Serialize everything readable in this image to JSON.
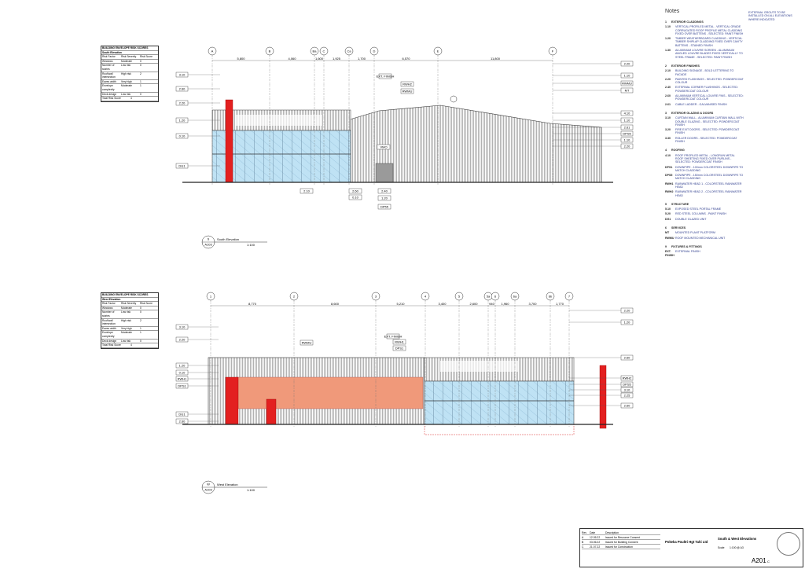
{
  "notes": {
    "heading": "Notes",
    "side_note": "EXTERNAL GROUTS TO BE INSTALLED ON ALL ELEVATIONS WHERE INDICATED",
    "sections": [
      {
        "number": "1",
        "title": "EXTERIOR CLADDINGS",
        "items": [
          {
            "code": "1.10",
            "text": "VERTICAL PROFILED METAL - VERTICAL GRADE CORRUGATED ROOF PROFILE METAL CLADDING FIXED OVER BATTENS - SELECTED: PAINT FINISH"
          },
          {
            "code": "1.20",
            "text": "TIMBER WEATHERBOARD CLADDING - VERTICAL TIMBER SHIPLAP CLADDING FIXED OVER CAVITY BATTENS - STAINED FINISH"
          },
          {
            "code": "1.30",
            "text": "ALUMINIUM LOUVRE SCREEN - ALUMINIUM ANGLED LOUVRE BLADES FIXED VERTICALLY TO STEEL FRAME - SELECTED: PAINT FINISH"
          }
        ]
      },
      {
        "number": "2",
        "title": "EXTERIOR FINISHES",
        "items": [
          {
            "code": "2.10",
            "text": "BUILDING SIGNAGE - BOLD LETTERING TO FACADE"
          },
          {
            "code": "2.20",
            "text": "PAINTED FLASHINGS - SELECTED: POWDERCOAT COLOUR"
          },
          {
            "code": "2.40",
            "text": "EXTERNAL CORNER FLASHINGS - SELECTED: POWDERCOAT COLOUR"
          },
          {
            "code": "2.60",
            "text": "ALUMINIUM VERTICAL LOUVRE FINS - SELECTED: POWDERCOAT COLOUR"
          },
          {
            "code": "2.61",
            "text": "CABLE LADDER - GALVANISED FINISH"
          }
        ]
      },
      {
        "number": "3",
        "title": "EXTERIOR GLAZING & DOORS",
        "items": [
          {
            "code": "3.10",
            "text": "CURTAIN WALL - ALUMINIUM CURTAIN WALL WITH DOUBLE GLAZING - SELECTED: POWDERCOAT FINISH"
          },
          {
            "code": "3.20",
            "text": "FIRE EXIT DOORS - SELECTED: POWDERCOAT FINISH"
          },
          {
            "code": "3.30",
            "text": "ROLLER DOORS - SELECTED: POWDERCOAT FINISH"
          }
        ]
      },
      {
        "number": "4",
        "title": "ROOFING",
        "items": [
          {
            "code": "4.10",
            "text": "ROOF PROFILED METAL - LONGRUN METAL ROOF SHEETING FIXED OVER PURLINS - SELECTED: POWDERCOAT FINISH"
          },
          {
            "code": "DPS1",
            "text": "DOWNPIPE - 100mm COLORSTEEL DOWNPIPE TO MATCH CLADDING"
          },
          {
            "code": "DPS5",
            "text": "DOWNPIPE - 150mm COLORSTEEL DOWNPIPE TO MATCH CLADDING"
          },
          {
            "code": "RWH1",
            "text": "RAINWATER HEAD 1 - COLORSTEEL RAINWATER HEAD"
          },
          {
            "code": "RWH2",
            "text": "RAINWATER HEAD 2 - COLORSTEEL RAINWATER HEAD"
          }
        ]
      },
      {
        "number": "5",
        "title": "STRUCTURE",
        "items": [
          {
            "code": "5.10",
            "text": "EXPOSED STEEL PORTAL FRAME"
          },
          {
            "code": "5.20",
            "text": "RED STEEL COLUMNS - PAINT FINISH"
          },
          {
            "code": "DG1",
            "text": "DOUBLE GLAZED UNIT"
          }
        ]
      },
      {
        "number": "6",
        "title": "SERVICES",
        "items": [
          {
            "code": "MT",
            "text": "MOUNTED PLANT PLATFORM"
          },
          {
            "code": "RWMU",
            "text": "ROOF MOUNTED MECHANICAL UNIT"
          }
        ]
      },
      {
        "number": "9",
        "title": "FIXTURES & FITTINGS",
        "items": [
          {
            "code": "EXT. FINISH",
            "text": "EXTERNAL FINISH"
          }
        ]
      }
    ]
  },
  "elevations": [
    {
      "title": "South Elevation",
      "ref": "S",
      "sheet": "A103",
      "scale": "1:100",
      "grids": [
        "A",
        "B",
        "Ba",
        "C",
        "Ca",
        "D",
        "E",
        "F"
      ],
      "dimensions": [
        "5,800",
        "4,060",
        "1,600",
        "1,925",
        "1,700",
        "6,570",
        "11,800"
      ],
      "levels_left": [
        "3.10",
        "2.60",
        "2.20",
        "1.20",
        "0.10",
        "DG1"
      ],
      "levels_right": [
        "2.20",
        "1.10",
        "RWMU",
        "MT",
        "4.10",
        "1.10",
        "2.61",
        "DPS5",
        "1.10",
        "2.20"
      ],
      "callouts": [
        "EXT. FINISH",
        "RWH2",
        "RWMU",
        "VMO",
        "2.10",
        "2.60",
        "2.40",
        "0.10",
        "1.20",
        "DP55"
      ],
      "schedule": {
        "title": "BUILDING ENVELOPE RISK SCORES",
        "subtitle": "South Elevation",
        "headers": [
          "Risk Factor",
          "Risk Severity",
          "Risk Score"
        ],
        "rows": [
          [
            "Windows",
            "Moderate",
            "0"
          ],
          [
            "Number of stories",
            "Low risk",
            "0"
          ],
          [
            "Roof/wall intersection",
            "High risk",
            "2"
          ],
          [
            "Eaves width",
            "Very high",
            "1"
          ],
          [
            "Envelope complexity",
            "Moderate",
            "1"
          ],
          [
            "Deck design",
            "Low risk",
            "0"
          ]
        ],
        "total": [
          "Total Risk Score",
          "4"
        ]
      }
    },
    {
      "title": "West Elevation",
      "ref": "W",
      "sheet": "A103",
      "scale": "1:100",
      "grids": [
        "1",
        "2",
        "3",
        "4",
        "5",
        "5a",
        "6",
        "6a",
        "6b",
        "7"
      ],
      "dimensions": [
        "8,770",
        "8,600",
        "5,210",
        "3,400",
        "2,600",
        "940",
        "1,960",
        "3,700",
        "1,770"
      ],
      "levels_left": [
        "3.10",
        "2.20",
        "1.20",
        "0.10",
        "RWH1",
        "DPS1",
        "DG1",
        "2.60"
      ],
      "levels_right": [
        "2.20",
        "1.20",
        "2.60",
        "RWH2",
        "DPS5",
        "3.10",
        "2.25",
        "2.60"
      ],
      "callouts": [
        "RWMU",
        "EXT. FINISH",
        "RWH1",
        "DPS1"
      ],
      "schedule": {
        "title": "BUILDING ENVELOPE RISK SCORES",
        "subtitle": "West Elevation",
        "headers": [
          "Risk Factor",
          "Risk Severity",
          "Risk Score"
        ],
        "rows": [
          [
            "Windows",
            "Moderate",
            "0"
          ],
          [
            "Number of stories",
            "Low risk",
            "0"
          ],
          [
            "Roof/wall intersection",
            "High risk",
            "2"
          ],
          [
            "Eaves width",
            "Very high",
            "1"
          ],
          [
            "Envelope complexity",
            "Moderate",
            "1"
          ],
          [
            "Deck design",
            "Low risk",
            "0"
          ]
        ],
        "total": [
          "Total Risk Score",
          "4"
        ]
      }
    }
  ],
  "title_block": {
    "revision_headers": [
      "Rev",
      "Date",
      "Description"
    ],
    "revisions": [
      [
        "A",
        "12.05.22",
        "Issued for Resource Consent"
      ],
      [
        "B",
        "03.06.22",
        "Issued for Building Consent"
      ],
      [
        "C",
        "21.07.22",
        "Issued for Construction"
      ]
    ],
    "client": "Pokeka Poultri Hgt Tahi Ltd",
    "drawing_title": "South & West Elevations",
    "sheet_number": "A201",
    "revision": "C",
    "scale_label": "Scale",
    "scale": "1:100 @ A3"
  }
}
